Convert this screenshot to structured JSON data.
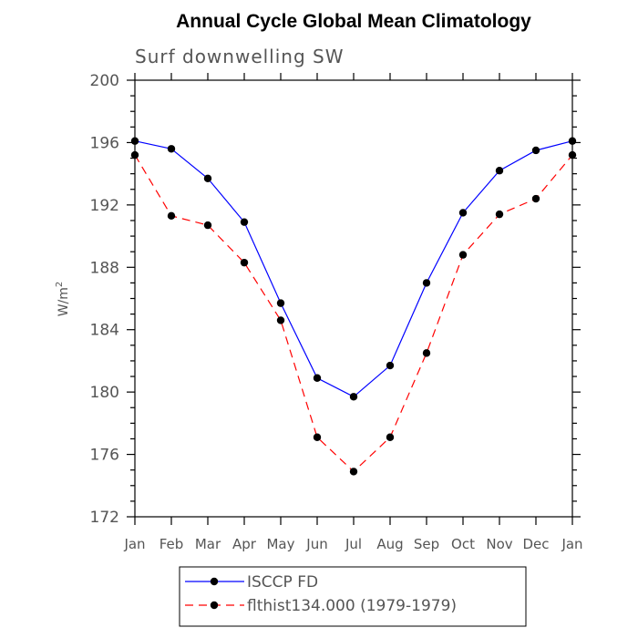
{
  "chart_data": {
    "type": "line",
    "title": "Annual Cycle Global Mean Climatology",
    "subtitle": "Surf downwelling SW",
    "xlabel": "",
    "ylabel": "W/m",
    "ylabel_superscript": "2",
    "categories": [
      "Jan",
      "Feb",
      "Mar",
      "Apr",
      "May",
      "Jun",
      "Jul",
      "Aug",
      "Sep",
      "Oct",
      "Nov",
      "Dec",
      "Jan"
    ],
    "ylim": [
      172,
      200
    ],
    "yticks": [
      172,
      176,
      180,
      184,
      188,
      192,
      196,
      200
    ],
    "ytick_labels": [
      "172",
      "176",
      "180",
      "184",
      "188",
      "192",
      "196",
      "200"
    ],
    "legend_position": "bottom",
    "series": [
      {
        "name": "ISCCP FD",
        "color": "#0000ff",
        "style": "solid",
        "values": [
          196.1,
          195.6,
          193.7,
          190.9,
          185.7,
          180.9,
          179.7,
          181.7,
          187.0,
          191.5,
          194.2,
          195.5,
          196.1
        ]
      },
      {
        "name": "flthist134.000 (1979-1979)",
        "color": "#ff0000",
        "style": "dashed",
        "values": [
          195.2,
          191.3,
          190.7,
          188.3,
          184.6,
          177.1,
          174.9,
          177.1,
          182.5,
          188.8,
          191.4,
          192.4,
          195.2
        ]
      }
    ]
  }
}
